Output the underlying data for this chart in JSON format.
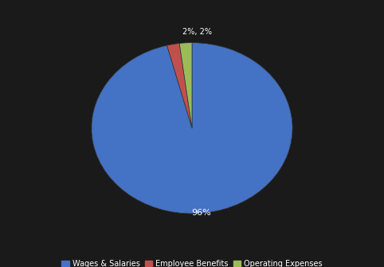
{
  "labels": [
    "Wages & Salaries",
    "Employee Benefits",
    "Operating Expenses"
  ],
  "values": [
    96,
    2,
    2
  ],
  "colors": [
    "#4472C4",
    "#C0504D",
    "#9BBB59"
  ],
  "background_color": "#1a1a1a",
  "text_color": "#FFFFFF",
  "legend_fontsize": 7,
  "startangle": 90,
  "pct_distance": 0.75
}
